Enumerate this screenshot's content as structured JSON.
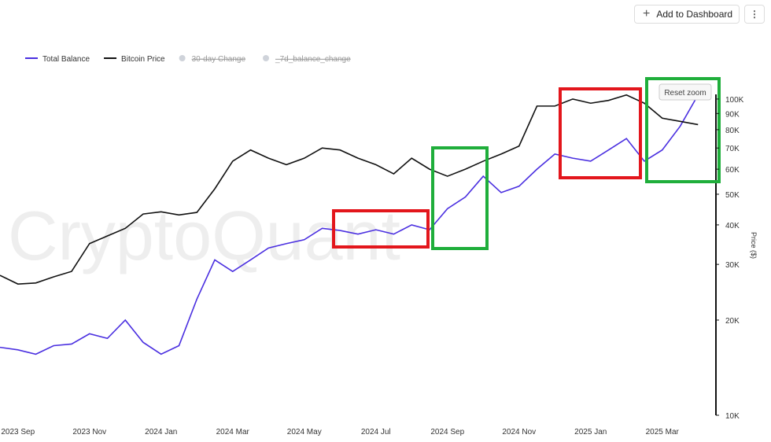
{
  "toolbar": {
    "button": "Add to Dashboard"
  },
  "chart_data": {
    "type": "line",
    "watermark": "CryptoQuant",
    "reset_zoom": "Reset zoom",
    "y_label": "Price ($)",
    "log_scale": true,
    "categories": [
      null,
      "2023 Sep",
      null,
      null,
      null,
      "2023 Nov",
      null,
      null,
      null,
      "2024 Jan",
      null,
      null,
      null,
      "2024 Mar",
      null,
      null,
      null,
      "2024 May",
      null,
      null,
      null,
      "2024 Jul",
      null,
      null,
      null,
      "2024 Sep",
      null,
      null,
      null,
      "2024 Nov",
      null,
      null,
      null,
      "2025 Jan",
      null,
      null,
      null,
      "2025 Mar",
      null,
      null
    ],
    "series": [
      {
        "name": "Total Balance",
        "color": "#4a2fe0",
        "values": [
          16400,
          16100,
          15600,
          16600,
          16800,
          18100,
          17500,
          20000,
          17000,
          15600,
          16600,
          23300,
          31000,
          28500,
          31000,
          33800,
          34900,
          35900,
          39000,
          38400,
          37400,
          38600,
          37400,
          40000,
          38600,
          45000,
          49000,
          57000,
          50600,
          53000,
          60000,
          67000,
          65000,
          63600,
          69000,
          75000,
          63600,
          69000,
          82000,
          103000
        ]
      },
      {
        "name": "Bitcoin Price",
        "color": "#111111",
        "values": [
          27700,
          26000,
          26200,
          27400,
          28500,
          34900,
          36900,
          39000,
          43300,
          44000,
          43000,
          43800,
          52000,
          63600,
          69000,
          65000,
          62000,
          65000,
          70000,
          69000,
          65000,
          62000,
          58000,
          65000,
          60000,
          57000,
          60000,
          63600,
          67000,
          71000,
          95000,
          95000,
          100000,
          97000,
          99000,
          103000,
          97000,
          87000,
          85000,
          83000
        ]
      }
    ],
    "legend_hidden": [
      "30-day Change",
      "_7d_balance_change"
    ],
    "ylim": [
      10000,
      116000
    ],
    "yticks": [
      {
        "value": 10000,
        "label": "10K"
      },
      {
        "value": 20000,
        "label": "20K"
      },
      {
        "value": 30000,
        "label": "30K"
      },
      {
        "value": 40000,
        "label": "40K"
      },
      {
        "value": 50000,
        "label": "50K"
      },
      {
        "value": 60000,
        "label": "60K"
      },
      {
        "value": 70000,
        "label": "70K"
      },
      {
        "value": 80000,
        "label": "80K"
      },
      {
        "value": 90000,
        "label": "90K"
      },
      {
        "value": 100000,
        "label": "100K"
      }
    ]
  }
}
